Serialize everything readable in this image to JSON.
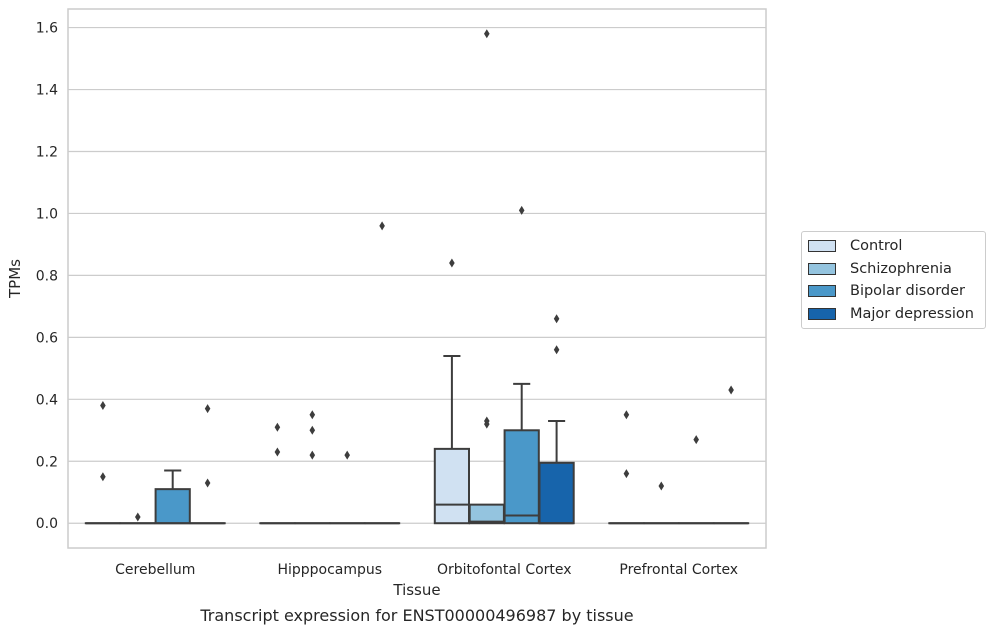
{
  "chart_data": {
    "type": "box",
    "xlabel": "Tissue",
    "ylabel": "TPMs",
    "caption": "Transcript expression for ENST00000496987 by tissue",
    "ylim": [
      -0.08,
      1.66
    ],
    "yticks": [
      "0.0",
      "0.2",
      "0.4",
      "0.6",
      "0.8",
      "1.0",
      "1.2",
      "1.4",
      "1.6"
    ],
    "grid": true,
    "legend_position": "right",
    "categories": [
      "Cerebellum",
      "Hipppocampus",
      "Orbitofontal Cortex",
      "Prefrontal Cortex"
    ],
    "series": [
      {
        "name": "Control",
        "color": "#d0e1f2",
        "boxes": [
          {
            "q1": 0,
            "median": 0,
            "q3": 0,
            "whisker_low": 0,
            "whisker_high": 0,
            "outliers": [
              0.38,
              0.15
            ]
          },
          {
            "q1": 0,
            "median": 0,
            "q3": 0,
            "whisker_low": 0,
            "whisker_high": 0,
            "outliers": [
              0.31,
              0.23
            ]
          },
          {
            "q1": 0,
            "median": 0.06,
            "q3": 0.24,
            "whisker_low": 0,
            "whisker_high": 0.54,
            "outliers": [
              0.84
            ]
          },
          {
            "q1": 0,
            "median": 0,
            "q3": 0,
            "whisker_low": 0,
            "whisker_high": 0,
            "outliers": [
              0.35,
              0.16
            ]
          }
        ]
      },
      {
        "name": "Schizophrenia",
        "color": "#94c4df",
        "boxes": [
          {
            "q1": 0,
            "median": 0,
            "q3": 0,
            "whisker_low": 0,
            "whisker_high": 0,
            "outliers": [
              0.02
            ]
          },
          {
            "q1": 0,
            "median": 0,
            "q3": 0,
            "whisker_low": 0,
            "whisker_high": 0,
            "outliers": [
              0.35,
              0.3,
              0.22
            ]
          },
          {
            "q1": 0,
            "median": 0.005,
            "q3": 0.06,
            "whisker_low": 0,
            "whisker_high": 0.06,
            "outliers": [
              1.58,
              0.33,
              0.32
            ]
          },
          {
            "q1": 0,
            "median": 0,
            "q3": 0,
            "whisker_low": 0,
            "whisker_high": 0,
            "outliers": [
              0.12
            ]
          }
        ]
      },
      {
        "name": "Bipolar disorder",
        "color": "#4a98c9",
        "boxes": [
          {
            "q1": 0,
            "median": 0,
            "q3": 0.11,
            "whisker_low": 0,
            "whisker_high": 0.17,
            "outliers": []
          },
          {
            "q1": 0,
            "median": 0,
            "q3": 0,
            "whisker_low": 0,
            "whisker_high": 0,
            "outliers": [
              0.22
            ]
          },
          {
            "q1": 0,
            "median": 0.025,
            "q3": 0.3,
            "whisker_low": 0,
            "whisker_high": 0.45,
            "outliers": [
              1.01
            ]
          },
          {
            "q1": 0,
            "median": 0,
            "q3": 0,
            "whisker_low": 0,
            "whisker_high": 0,
            "outliers": [
              0.27
            ]
          }
        ]
      },
      {
        "name": "Major depression",
        "color": "#1764ab",
        "boxes": [
          {
            "q1": 0,
            "median": 0,
            "q3": 0,
            "whisker_low": 0,
            "whisker_high": 0,
            "outliers": [
              0.37,
              0.13
            ]
          },
          {
            "q1": 0,
            "median": 0,
            "q3": 0,
            "whisker_low": 0,
            "whisker_high": 0,
            "outliers": [
              0.96
            ]
          },
          {
            "q1": 0,
            "median": 0,
            "q3": 0.195,
            "whisker_low": 0,
            "whisker_high": 0.33,
            "outliers": [
              0.66,
              0.56
            ]
          },
          {
            "q1": 0,
            "median": 0,
            "q3": 0,
            "whisker_low": 0,
            "whisker_high": 0,
            "outliers": [
              0.43
            ]
          }
        ]
      }
    ]
  }
}
